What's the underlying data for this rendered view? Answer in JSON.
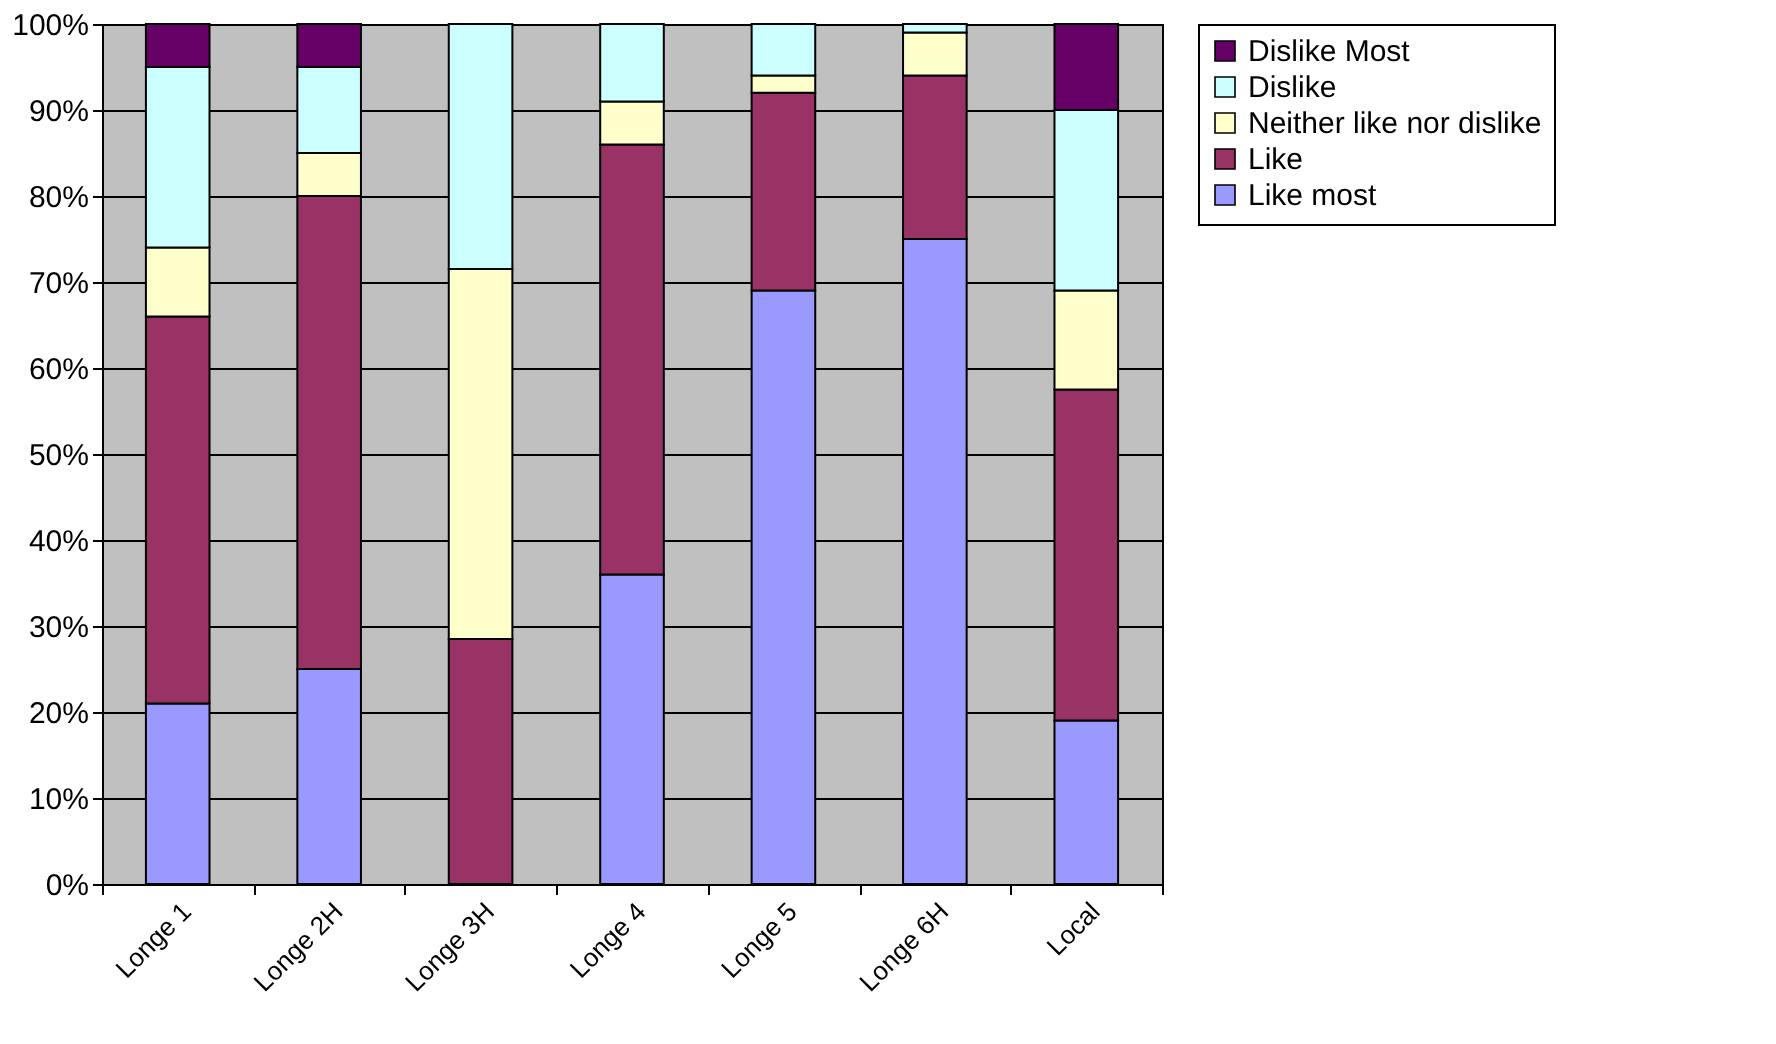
{
  "chart_data": {
    "type": "bar",
    "stacked": true,
    "categories": [
      "Longe 1",
      "Longe 2H",
      "Longe 3H",
      "Longe 4",
      "Longe 5",
      "Longe 6H",
      "Local"
    ],
    "series": [
      {
        "name": "Like most",
        "color": "#9999ff",
        "values": [
          21,
          25,
          null,
          36,
          69,
          75,
          19
        ]
      },
      {
        "name": "Like",
        "color": "#993366",
        "values": [
          45,
          55,
          28.5,
          50,
          23,
          19,
          38.5
        ]
      },
      {
        "name": "Neither like nor dislike",
        "color": "#ffffcc",
        "values": [
          8,
          5,
          43,
          5,
          2,
          5,
          11.5
        ]
      },
      {
        "name": "Dislike",
        "color": "#ccffff",
        "values": [
          21,
          10,
          28.5,
          9,
          6,
          1,
          21
        ]
      },
      {
        "name": "Dislike Most",
        "color": "#660066",
        "values": [
          5,
          5,
          null,
          null,
          null,
          null,
          10
        ]
      }
    ],
    "ylim": [
      0,
      100
    ],
    "yticks": [
      {
        "value": 0,
        "label": "0%"
      },
      {
        "value": 10,
        "label": "10%"
      },
      {
        "value": 20,
        "label": "20%"
      },
      {
        "value": 30,
        "label": "30%"
      },
      {
        "value": 40,
        "label": "40%"
      },
      {
        "value": 50,
        "label": "50%"
      },
      {
        "value": 60,
        "label": "60%"
      },
      {
        "value": 70,
        "label": "70%"
      },
      {
        "value": 80,
        "label": "80%"
      },
      {
        "value": 90,
        "label": "90%"
      },
      {
        "value": 100,
        "label": "100%"
      }
    ],
    "grid": "y",
    "legend": "right"
  }
}
